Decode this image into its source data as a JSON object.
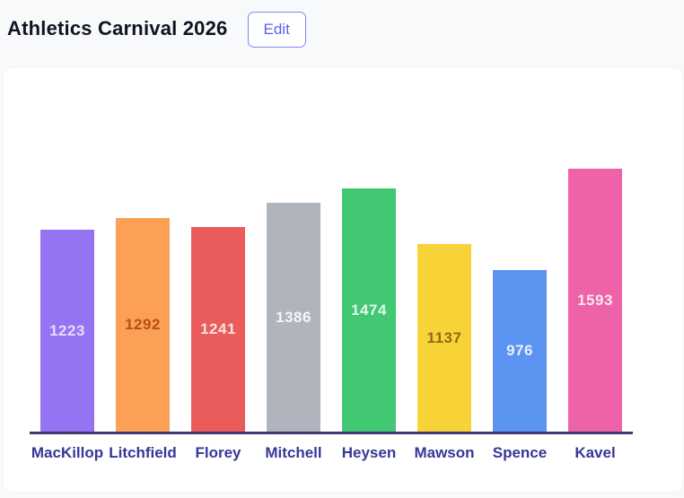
{
  "header": {
    "title": "Athletics Carnival 2026",
    "edit_button_label": "Edit"
  },
  "chart_data": {
    "type": "bar",
    "title": "Athletics Carnival 2026",
    "categories": [
      "MacKillop",
      "Litchfield",
      "Florey",
      "Mitchell",
      "Heysen",
      "Mawson",
      "Spence",
      "Kavel"
    ],
    "values": [
      1223,
      1292,
      1241,
      1386,
      1474,
      1137,
      976,
      1593
    ],
    "bar_colors": [
      "#9673F2",
      "#FBA055",
      "#EA5C5C",
      "#AFB4BD",
      "#42C873",
      "#F8D338",
      "#5B93F0",
      "#EE62A8"
    ],
    "value_label_colors": [
      "#E6DDFB",
      "#BB4E12",
      "#FBE3E3",
      "#F5F6F8",
      "#E4F7EC",
      "#8D6C14",
      "#EAF1FD",
      "#FBE7F2"
    ],
    "value_labels_shown": true,
    "xlabel": "",
    "ylabel": "",
    "ylim": [
      0,
      1700
    ],
    "grid": false,
    "legend": "none",
    "axis_line_color": "#3C3A6E",
    "category_label_color": "#373798"
  },
  "colors": {
    "page_background": "#F8F9FB",
    "panel_background": "#FFFFFF",
    "accent": "#5D5FE8",
    "title_text": "#111322"
  }
}
